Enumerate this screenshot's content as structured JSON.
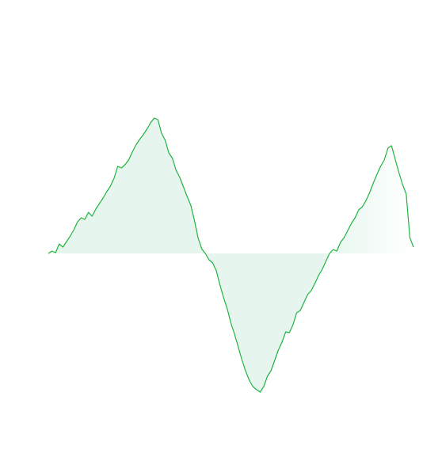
{
  "chart_data": {
    "type": "area",
    "title": "",
    "xlabel": "",
    "ylabel": "",
    "baseline": 0,
    "grid": false,
    "legend": "none",
    "x": [
      0,
      1,
      2,
      3,
      4,
      5,
      6,
      7,
      8,
      9,
      10,
      11,
      12,
      13,
      14,
      15,
      16,
      17,
      18,
      19,
      20,
      21,
      22,
      23,
      24,
      25,
      26,
      27,
      28,
      29,
      30,
      31,
      32,
      33,
      34,
      35,
      36,
      37,
      38,
      39,
      40,
      41,
      42,
      43,
      44,
      45,
      46,
      47,
      48,
      49,
      50,
      51,
      52,
      53,
      54,
      55,
      56,
      57,
      58,
      59,
      60,
      61,
      62,
      63,
      64,
      65,
      66,
      67,
      68,
      69,
      70,
      71,
      72,
      73,
      74,
      75,
      76,
      77,
      78,
      79,
      80,
      81,
      82,
      83,
      84,
      85,
      86,
      87,
      88,
      89,
      90,
      91,
      92,
      93,
      94,
      95,
      96,
      97,
      98,
      99,
      100
    ],
    "series": [
      {
        "values": [
          0,
          3,
          1,
          12,
          8,
          15,
          22,
          30,
          40,
          45,
          43,
          52,
          47,
          56,
          63,
          70,
          78,
          85,
          95,
          110,
          108,
          112,
          118,
          128,
          137,
          144,
          150,
          157,
          165,
          171,
          169,
          152,
          143,
          127,
          120,
          105,
          96,
          84,
          72,
          61,
          42,
          20,
          6,
          0,
          -8,
          -12,
          -22,
          -40,
          -56,
          -70,
          -88,
          -102,
          -118,
          -134,
          -148,
          -160,
          -168,
          -172,
          -175,
          -168,
          -155,
          -148,
          -135,
          -122,
          -112,
          -99,
          -100,
          -90,
          -75,
          -72,
          -62,
          -52,
          -47,
          -38,
          -28,
          -20,
          -10,
          0,
          5,
          3,
          14,
          20,
          29,
          38,
          45,
          55,
          59,
          67,
          77,
          89,
          100,
          110,
          118,
          133,
          136,
          119,
          102,
          87,
          75,
          20,
          8
        ]
      }
    ],
    "colors": {
      "positive_line": "#1fb33f",
      "positive_fill": "#e8f6ee",
      "negative_line": "#e0412c",
      "negative_fill": "#fde5e6"
    }
  }
}
